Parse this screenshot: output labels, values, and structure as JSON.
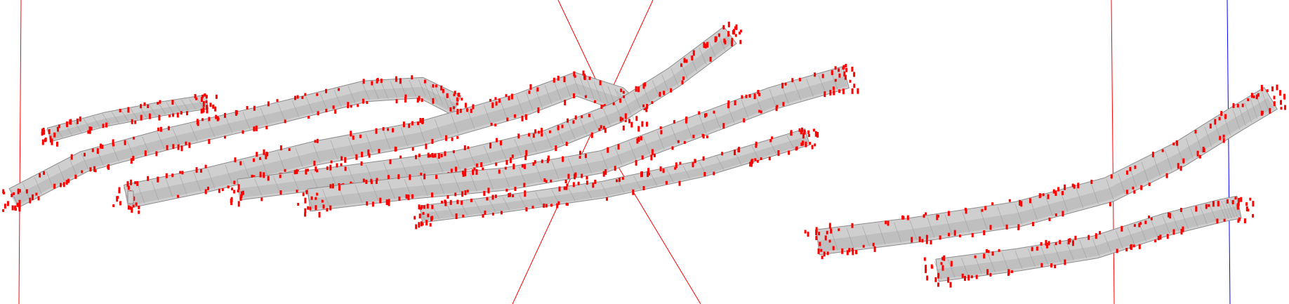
{
  "scene": {
    "background": "#ffffff",
    "tube_fill": "#cfcfcf",
    "tube_fill_dark": "#b2b2b2",
    "tube_stroke": "#8d8d8d",
    "marker_color": "#ff0000",
    "guide_red": "#ff0000",
    "guide_blue": "#0000ff",
    "tube_count": 8,
    "text_labels": []
  }
}
